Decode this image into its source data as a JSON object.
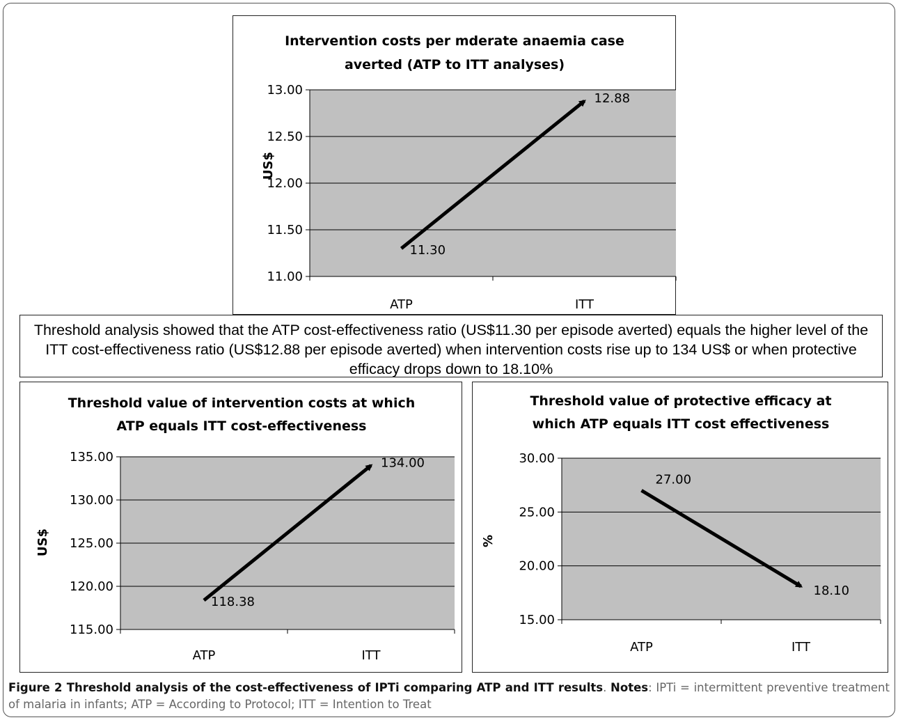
{
  "callout_text": "Threshold analysis showed that the ATP cost-effectiveness ratio (US$11.30 per episode averted) equals the higher level of the ITT cost-effectiveness ratio (US$12.88 per episode averted) when intervention costs rise up to 134 US$ or when protective efficacy drops down to 18.10%",
  "caption": {
    "title": "Figure 2 Threshold analysis of the cost-effectiveness of IPTi comparing ATP and ITT results",
    "notes_label": "Notes",
    "notes_text": ": IPTi = intermittent preventive treatment of malaria in infants; ATP = According to Protocol; ITT = Intention to Treat"
  },
  "colors": {
    "plot_bg": "#c0c0c0",
    "line": "#000000",
    "grid": "#000000"
  },
  "chart_data": [
    {
      "type": "line",
      "title_lines": [
        "Intervention costs per mderate anaemia case",
        "averted (ATP to ITT analyses)"
      ],
      "ylabel": "US$",
      "categories": [
        "ATP",
        "ITT"
      ],
      "values": [
        11.3,
        12.88
      ],
      "data_labels": [
        "11.30",
        "12.88"
      ],
      "yticks": [
        "11.00",
        "11.50",
        "12.00",
        "12.50",
        "13.00"
      ],
      "ylim": [
        11.0,
        13.0
      ],
      "grid": true,
      "arrow": true
    },
    {
      "type": "line",
      "title_lines": [
        "Threshold value of intervention costs at which",
        "ATP equals ITT cost-effectiveness"
      ],
      "ylabel": "US$",
      "categories": [
        "ATP",
        "ITT"
      ],
      "values": [
        118.38,
        134.0
      ],
      "data_labels": [
        "118.38",
        "134.00"
      ],
      "yticks": [
        "115.00",
        "120.00",
        "125.00",
        "130.00",
        "135.00"
      ],
      "ylim": [
        115.0,
        135.0
      ],
      "grid": true,
      "arrow": true
    },
    {
      "type": "line",
      "title_lines": [
        "Threshold value of protective efficacy at",
        "which ATP equals ITT cost effectiveness"
      ],
      "ylabel": "%",
      "categories": [
        "ATP",
        "ITT"
      ],
      "values": [
        27.0,
        18.1
      ],
      "data_labels": [
        "27.00",
        "18.10"
      ],
      "yticks": [
        "15.00",
        "20.00",
        "25.00",
        "30.00"
      ],
      "ylim": [
        15.0,
        30.0
      ],
      "grid": true,
      "arrow": true
    }
  ]
}
